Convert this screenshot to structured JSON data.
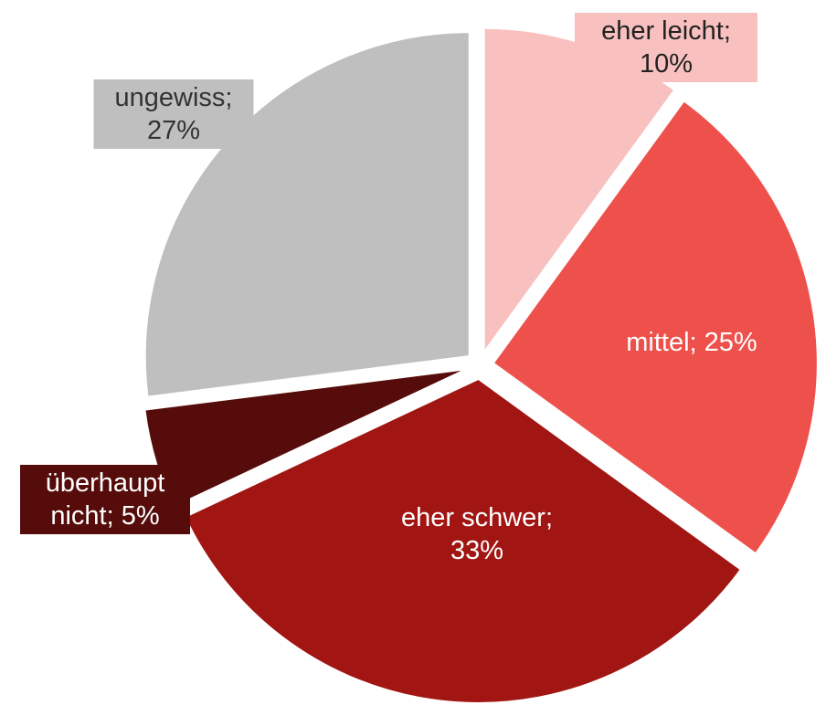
{
  "chart_data": {
    "type": "pie",
    "categories": [
      "eher leicht",
      "mittel",
      "eher schwer",
      "überhaupt nicht",
      "ungewiss"
    ],
    "values": [
      10,
      25,
      33,
      5,
      27
    ],
    "value_labels": [
      "eher leicht; 10%",
      "mittel; 25%",
      "eher schwer; 33%",
      "überhaupt nicht; 5%",
      "ungewiss; 27%"
    ],
    "colors": [
      "#f8c1c0",
      "#ee514c",
      "#a11512",
      "#550c0a",
      "#bfbfbf"
    ]
  }
}
